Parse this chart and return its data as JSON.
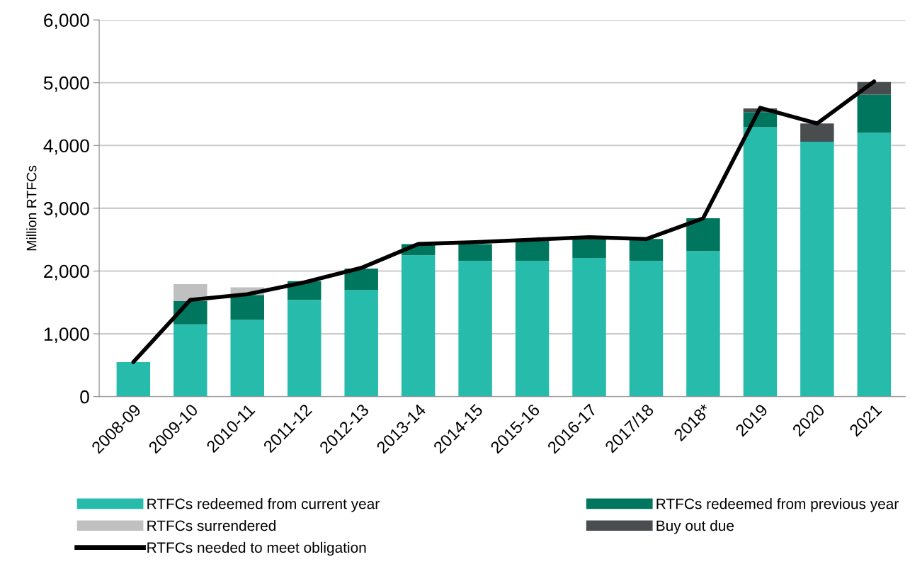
{
  "chart_data": {
    "type": "bar",
    "stacked": true,
    "ylabel": "Million RTFCs",
    "categories": [
      "2008-09",
      "2009-10",
      "2010-11",
      "2011-12",
      "2012-13",
      "2013-14",
      "2014-15",
      "2015-16",
      "2016-17",
      "2017/18",
      "2018*",
      "2019",
      "2020",
      "2021"
    ],
    "series": [
      {
        "name": "RTFCs redeemed from current year",
        "color": "#27bbac",
        "values": [
          550,
          1150,
          1220,
          1540,
          1700,
          2250,
          2160,
          2160,
          2210,
          2160,
          2320,
          4290,
          4060,
          4200
        ]
      },
      {
        "name": "RTFCs redeemed from previous year",
        "color": "#00765f",
        "values": [
          0,
          370,
          400,
          300,
          340,
          180,
          270,
          330,
          300,
          350,
          520,
          240,
          0,
          610
        ]
      },
      {
        "name": "RTFCs surrendered",
        "color": "#c0c0c0",
        "values": [
          0,
          270,
          120,
          0,
          0,
          0,
          0,
          0,
          0,
          0,
          0,
          0,
          0,
          0
        ]
      },
      {
        "name": "Buy out due",
        "color": "#4a4d50",
        "values": [
          0,
          0,
          0,
          0,
          0,
          0,
          0,
          0,
          0,
          0,
          0,
          60,
          290,
          200
        ]
      },
      {
        "name": "RTFCs needed to meet obligation",
        "type": "line",
        "color": "#000000",
        "values": [
          550,
          1540,
          1630,
          1820,
          2050,
          2430,
          2460,
          2500,
          2540,
          2510,
          2840,
          4600,
          4350,
          5020
        ]
      }
    ],
    "ylim": [
      0,
      6000
    ],
    "yticks": [
      0,
      {
        "value": 1000,
        "label": "1,000"
      },
      {
        "value": 2000,
        "label": "2,000"
      },
      {
        "value": 3000,
        "label": "3,000"
      },
      {
        "value": 4000,
        "label": "4,000"
      },
      {
        "value": 5000,
        "label": "5,000"
      },
      {
        "value": 6000,
        "label": "6,000"
      }
    ],
    "grid": "y",
    "legend": "bottom",
    "marker": "none",
    "line_style": "solid"
  }
}
